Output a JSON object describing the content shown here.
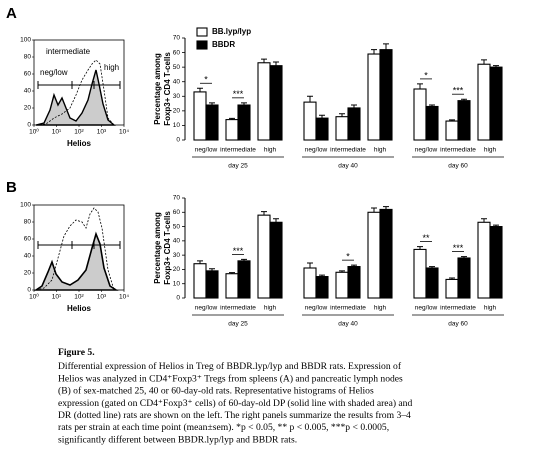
{
  "panel_labels": [
    "A",
    "B"
  ],
  "histograms": [
    {
      "xlabel": "Helios",
      "ylim": [
        0,
        100
      ],
      "yticks": [
        0,
        20,
        40,
        60,
        80,
        100
      ],
      "xscale": "log",
      "xlim": [
        1,
        10000
      ],
      "xticks": [
        {
          "value": 1,
          "label": "10⁰"
        },
        {
          "value": 10,
          "label": "10¹"
        },
        {
          "value": 100,
          "label": "10²"
        },
        {
          "value": 1000,
          "label": "10³"
        },
        {
          "value": 10000,
          "label": "10⁴"
        }
      ],
      "gates": [
        "neg/low",
        "intermediate",
        "high"
      ]
    },
    {
      "xlabel": "Helios",
      "ylim": [
        0,
        100
      ],
      "yticks": [
        0,
        20,
        40,
        60,
        80,
        100
      ],
      "xscale": "log",
      "xlim": [
        1,
        10000
      ],
      "xticks": [
        {
          "value": 1,
          "label": "10⁰"
        },
        {
          "value": 10,
          "label": "10¹"
        },
        {
          "value": 100,
          "label": "10²"
        },
        {
          "value": 1000,
          "label": "10³"
        },
        {
          "value": 10000,
          "label": "10⁴"
        }
      ]
    }
  ],
  "chart_data": [
    {
      "type": "bar",
      "ylabel": [
        "Percentage among",
        "Foxp3+ CD4 T-cells"
      ],
      "ylim": [
        0,
        70
      ],
      "yticks": [
        0,
        10,
        20,
        30,
        40,
        50,
        60,
        70
      ],
      "categories": [
        "neg/low",
        "intermediate",
        "high",
        "neg/low",
        "intermediate",
        "high",
        "neg/low",
        "intermediate",
        "high"
      ],
      "group_labels": [
        "day 25",
        "day 40",
        "day 60"
      ],
      "legend": true,
      "series": [
        {
          "name": "BB.lyp/lyp",
          "color": "#ffffff",
          "values": [
            33,
            14,
            53,
            26,
            16,
            59,
            35,
            13,
            52
          ],
          "errors": [
            2.5,
            0.8,
            2.5,
            4,
            2,
            3,
            3.5,
            0.8,
            3
          ]
        },
        {
          "name": "BBDR",
          "color": "#000000",
          "values": [
            24,
            24,
            51,
            15,
            22,
            62,
            23,
            27,
            50
          ],
          "errors": [
            1.5,
            1.5,
            2.5,
            2,
            2,
            4,
            1,
            1,
            1
          ]
        }
      ],
      "significance": [
        {
          "category": 0,
          "label": "*"
        },
        {
          "category": 1,
          "label": "***"
        },
        {
          "category": 6,
          "label": "*"
        },
        {
          "category": 7,
          "label": "***"
        }
      ]
    },
    {
      "type": "bar",
      "ylabel": [
        "Percentage among",
        "Foxp3+ CD4 T-cells"
      ],
      "ylim": [
        0,
        70
      ],
      "yticks": [
        0,
        10,
        20,
        30,
        40,
        50,
        60,
        70
      ],
      "categories": [
        "neg/low",
        "intermediate",
        "high",
        "neg/low",
        "intermediate",
        "high",
        "neg/low",
        "intermediate",
        "high"
      ],
      "group_labels": [
        "day 25",
        "day 40",
        "day 60"
      ],
      "legend": false,
      "series": [
        {
          "name": "BB.lyp/lyp",
          "color": "#ffffff",
          "values": [
            24,
            17,
            58,
            21,
            18,
            60,
            34,
            13,
            53
          ],
          "errors": [
            2,
            0.8,
            2.5,
            3.5,
            1,
            3,
            2,
            1,
            2.5
          ]
        },
        {
          "name": "BBDR",
          "color": "#000000",
          "values": [
            19,
            26,
            53,
            15,
            22,
            62,
            21,
            28,
            50
          ],
          "errors": [
            1.5,
            1,
            2.5,
            1,
            1,
            2,
            1,
            1,
            1
          ]
        }
      ],
      "significance": [
        {
          "category": 1,
          "label": "***"
        },
        {
          "category": 4,
          "label": "*"
        },
        {
          "category": 6,
          "label": "**"
        },
        {
          "category": 7,
          "label": "***"
        }
      ]
    }
  ],
  "caption": {
    "title": "Figure 5.",
    "lines": [
      "Differential expression of Helios in Treg of BBDR.lyp/lyp and BBDR rats. Expression of",
      "Helios was analyzed in CD4⁺Foxp3⁺ Tregs from spleens (A) and pancreatic lymph nodes",
      "(B) of sex-matched 25, 40 or 60-day-old rats. Representative histograms of Helios",
      "expression (gated on CD4⁺Foxp3⁺ cells) of 60-day-old DP (solid line with shaded area) and",
      "DR (dotted line) rats are shown on the left. The right panels summarize the results from 3–4",
      "rats per strain at each time point (mean±sem). *p < 0.05, ** p < 0.005, ***p < 0.0005,",
      "significantly different between BBDR.lyp/lyp and BBDR rats."
    ]
  }
}
